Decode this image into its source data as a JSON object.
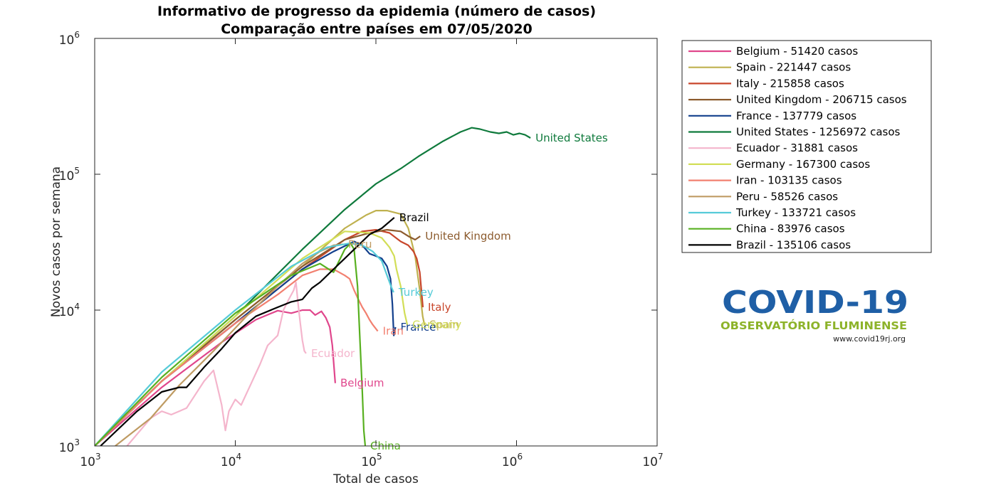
{
  "chart_data": {
    "type": "line",
    "title": "Informativo de progresso da epidemia (número de casos)",
    "subtitle": "Comparação entre países em 07/05/2020",
    "xlabel": "Total de casos",
    "ylabel": "Novos casos por semana",
    "xscale": "log",
    "yscale": "log",
    "xlim": [
      1000,
      10000000
    ],
    "ylim": [
      1000,
      1000000
    ],
    "xticks": [
      {
        "base": "10",
        "exp": "3"
      },
      {
        "base": "10",
        "exp": "4"
      },
      {
        "base": "10",
        "exp": "5"
      },
      {
        "base": "10",
        "exp": "6"
      },
      {
        "base": "10",
        "exp": "7"
      }
    ],
    "yticks": [
      {
        "base": "10",
        "exp": "3"
      },
      {
        "base": "10",
        "exp": "4"
      },
      {
        "base": "10",
        "exp": "5"
      },
      {
        "base": "10",
        "exp": "6"
      }
    ],
    "grid": false,
    "legend_position": "outside-right",
    "series": [
      {
        "name": "Belgium - 51420 casos",
        "label": "Belgium",
        "color": "#e0468c",
        "x": [
          1000,
          3000,
          8000,
          14000,
          20000,
          25000,
          30000,
          34000,
          37000,
          41000,
          44000,
          47000,
          49000,
          51420
        ],
        "y": [
          1000,
          2700,
          5800,
          8500,
          9900,
          9500,
          10000,
          10000,
          9200,
          9800,
          8800,
          7500,
          5500,
          2900
        ]
      },
      {
        "name": "Spain - 221447 casos",
        "label": "Spain",
        "color": "#bfb14f",
        "x": [
          1000,
          3000,
          10000,
          30000,
          60000,
          85000,
          100000,
          120000,
          150000,
          170000,
          190000,
          205000,
          215000,
          221447
        ],
        "y": [
          1000,
          3000,
          8500,
          21000,
          40000,
          50000,
          54000,
          54000,
          51000,
          40000,
          25000,
          14000,
          9000,
          7800
        ]
      },
      {
        "name": "Italy - 215858 casos",
        "label": "Italy",
        "color": "#c8462b",
        "x": [
          1000,
          3000,
          10000,
          30000,
          60000,
          80000,
          100000,
          125000,
          150000,
          170000,
          185000,
          195000,
          205000,
          215858
        ],
        "y": [
          1000,
          3000,
          8000,
          20000,
          33000,
          38000,
          39000,
          37000,
          32000,
          30000,
          27000,
          24000,
          19000,
          10500
        ]
      },
      {
        "name": "United Kingdom - 206715 casos",
        "label": "United Kingdom",
        "color": "#8c5b2e",
        "x": [
          1000,
          3000,
          10000,
          30000,
          60000,
          90000,
          120000,
          150000,
          170000,
          190000,
          206715
        ],
        "y": [
          1000,
          3000,
          8500,
          21000,
          33000,
          37000,
          39000,
          38000,
          35000,
          33000,
          35000
        ]
      },
      {
        "name": "France - 137779 casos",
        "label": "France",
        "color": "#123f8c",
        "x": [
          1000,
          3000,
          10000,
          30000,
          50000,
          70000,
          80000,
          90000,
          100000,
          110000,
          120000,
          127000,
          131000,
          134000,
          137779
        ],
        "y": [
          1000,
          3000,
          8000,
          20000,
          27000,
          32000,
          30000,
          26000,
          25000,
          24000,
          21000,
          17000,
          11000,
          6500,
          7500
        ]
      },
      {
        "name": "United States - 1256972 casos",
        "label": "United States",
        "color": "#0f7a3c",
        "x": [
          1000,
          3000,
          10000,
          30000,
          60000,
          100000,
          150000,
          200000,
          300000,
          400000,
          480000,
          550000,
          650000,
          750000,
          850000,
          950000,
          1050000,
          1150000,
          1256972
        ],
        "y": [
          1000,
          3000,
          9000,
          28000,
          55000,
          85000,
          110000,
          135000,
          175000,
          205000,
          220000,
          215000,
          205000,
          200000,
          205000,
          195000,
          200000,
          195000,
          185000
        ]
      },
      {
        "name": "Ecuador - 31881 casos",
        "label": "Ecuador",
        "color": "#f4b5cc",
        "x": [
          1700,
          2500,
          3000,
          3500,
          4500,
          6000,
          7000,
          8000,
          8500,
          9000,
          10000,
          11000,
          13000,
          15000,
          17000,
          20000,
          22000,
          24000,
          26000,
          27000,
          28000,
          29000,
          30000,
          31000,
          31881
        ],
        "y": [
          1000,
          1600,
          1800,
          1700,
          1900,
          3000,
          3600,
          2000,
          1300,
          1800,
          2200,
          2000,
          2900,
          4000,
          5500,
          6500,
          10000,
          12000,
          14000,
          16000,
          11000,
          8000,
          6000,
          5000,
          4800
        ]
      },
      {
        "name": "Germany - 167300 casos",
        "label": "Germany",
        "color": "#d2de57",
        "x": [
          1000,
          3000,
          10000,
          30000,
          60000,
          90000,
          110000,
          125000,
          135000,
          140000,
          150000,
          160000,
          167300
        ],
        "y": [
          1000,
          3000,
          9000,
          24000,
          38000,
          37000,
          34000,
          29000,
          25000,
          20000,
          15000,
          9500,
          7800
        ]
      },
      {
        "name": "Iran - 103135 casos",
        "label": "Iran",
        "color": "#f28070",
        "x": [
          1000,
          3000,
          10000,
          20000,
          30000,
          40000,
          50000,
          60000,
          65000,
          70000,
          75000,
          80000,
          85000,
          90000,
          95000,
          103135
        ],
        "y": [
          1000,
          3000,
          8000,
          13000,
          18000,
          20000,
          20000,
          18000,
          17000,
          14000,
          12000,
          10500,
          9500,
          8500,
          7800,
          7000
        ]
      },
      {
        "name": "Peru - 58526 casos",
        "label": "Peru",
        "color": "#bf9b63",
        "x": [
          1400,
          2500,
          4000,
          7000,
          12000,
          20000,
          30000,
          40000,
          50000,
          58526
        ],
        "y": [
          1000,
          1600,
          2800,
          5000,
          9000,
          15000,
          22000,
          27000,
          30000,
          30500
        ]
      },
      {
        "name": "Turkey - 133721 casos",
        "label": "Turkey",
        "color": "#56cbd8",
        "x": [
          1000,
          3000,
          10000,
          25000,
          45000,
          65000,
          80000,
          95000,
          110000,
          120000,
          128000,
          133721
        ],
        "y": [
          1000,
          3500,
          10000,
          21000,
          29000,
          31000,
          30000,
          27000,
          23000,
          18000,
          15000,
          13500
        ]
      },
      {
        "name": "China - 83976 casos",
        "label": "China",
        "color": "#58b020",
        "x": [
          1000,
          3000,
          10000,
          25000,
          40000,
          50000,
          60000,
          66000,
          70000,
          74000,
          77000,
          80000,
          82000,
          83976
        ],
        "y": [
          1000,
          3200,
          9500,
          18000,
          22000,
          19000,
          28000,
          31000,
          28000,
          15000,
          6000,
          2500,
          1300,
          1000
        ]
      },
      {
        "name": "Brazil - 135106 casos",
        "label": "Brazil",
        "color": "#000000",
        "x": [
          1100,
          2000,
          3000,
          4000,
          4500,
          6000,
          8000,
          10000,
          14000,
          20000,
          25000,
          30000,
          35000,
          40000,
          50000,
          60000,
          75000,
          90000,
          110000,
          135106
        ],
        "y": [
          1000,
          1800,
          2500,
          2700,
          2700,
          3800,
          5200,
          6800,
          9000,
          10500,
          11500,
          12000,
          14500,
          16000,
          20000,
          24000,
          30000,
          36000,
          40000,
          48000
        ]
      }
    ]
  },
  "logo": {
    "title": "COVID-19",
    "subtitle": "OBSERVATÓRIO FLUMINENSE",
    "url": "www.covid19rj.org",
    "colors": {
      "title": "#1f5fa6",
      "subtitle": "#8db32a"
    }
  }
}
